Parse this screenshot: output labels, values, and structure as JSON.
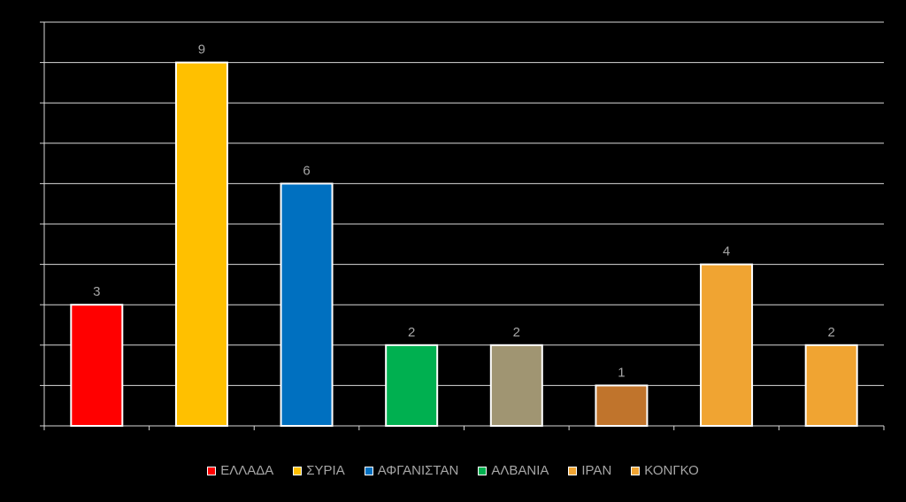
{
  "chart_data": {
    "type": "bar",
    "categories": [
      "",
      "",
      "",
      "",
      "",
      "",
      "",
      ""
    ],
    "values": [
      3,
      9,
      6,
      2,
      2,
      1,
      4,
      2
    ],
    "bar_colors": [
      "#ff0000",
      "#ffc000",
      "#0070c0",
      "#00b050",
      "#a09572",
      "#c0742c",
      "#f0a432",
      "#f0a432"
    ],
    "ylim": [
      0,
      10
    ],
    "grid": true,
    "legend_position": "bottom",
    "legend": [
      {
        "label": "ΕΛΛΑΔΑ",
        "color": "#ff0000"
      },
      {
        "label": "ΣΥΡΙΑ",
        "color": "#ffc000"
      },
      {
        "label": "ΑΦΓΑΝΙΣΤΑΝ",
        "color": "#0070c0"
      },
      {
        "label": "ΑΛΒΑΝΙΑ",
        "color": "#00b050"
      },
      {
        "label": "ΙΡΑΝ",
        "color": "#f0a432"
      },
      {
        "label": "ΚΟΝΓΚΟ",
        "color": "#f0a432"
      }
    ]
  }
}
